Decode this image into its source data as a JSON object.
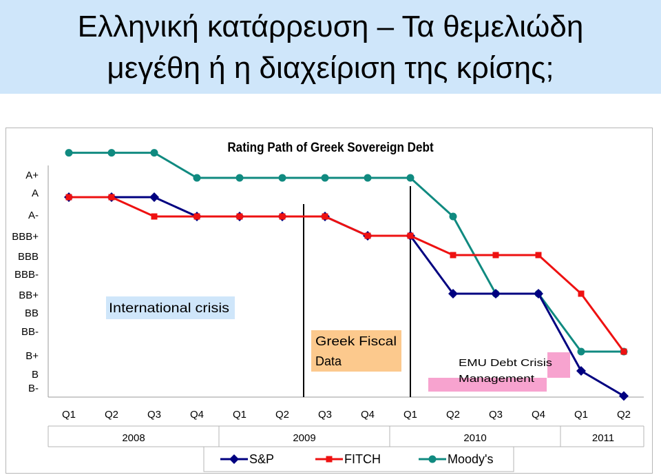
{
  "slide": {
    "title_line1": "Ελληνική κατάρρευση – Τα θεμελιώδη",
    "title_line2": "μεγέθη ή η διαχείριση της κρίσης;"
  },
  "annotations": {
    "intl_crisis": "International crisis",
    "greek_fiscal_line1": "Greek Fiscal",
    "greek_fiscal_line2": "Data",
    "emu_line1": "EMU Debt Crisis",
    "emu_line2": "Management"
  },
  "colors": {
    "sp": "#000080",
    "fitch": "#ee1111",
    "moodys": "#108a80",
    "intl_box": "#cfe6fa",
    "fiscal_box": "#fcc98d",
    "emu_box": "#f7a3cf"
  },
  "chart_data": {
    "type": "line",
    "title": "Rating Path of Greek Sovereign Debt",
    "y_categories": [
      "B-",
      "B",
      "B+",
      "BB-",
      "BB",
      "BB+",
      "BBB-",
      "BBB",
      "BBB+",
      "A-",
      "A",
      "A+"
    ],
    "x": [
      "Q1",
      "Q2",
      "Q3",
      "Q4",
      "Q1",
      "Q2",
      "Q3",
      "Q4",
      "Q1",
      "Q2",
      "Q3",
      "Q4",
      "Q1",
      "Q2"
    ],
    "years": [
      {
        "label": "2008",
        "start": 0,
        "span": 4
      },
      {
        "label": "2009",
        "start": 4,
        "span": 4
      },
      {
        "label": "2010",
        "start": 8,
        "span": 4
      },
      {
        "label": "2011",
        "start": 12,
        "span": 2
      }
    ],
    "series": [
      {
        "name": "S&P",
        "marker": "diamond",
        "values": [
          "A",
          "A",
          "A",
          "A-",
          "A-",
          "A-",
          "A-",
          "BBB+",
          "BBB+",
          "BB+",
          "BB+",
          "BB+",
          "B",
          "CCC"
        ]
      },
      {
        "name": "FITCH",
        "marker": "square",
        "values": [
          "A",
          "A",
          "A-",
          "A-",
          "A-",
          "A-",
          "A-",
          "BBB+",
          "BBB+",
          "BBB",
          "BBB",
          "BBB",
          "BB+",
          "B+"
        ]
      },
      {
        "name": "Moody's",
        "marker": "circle",
        "values": [
          "Aa1",
          "Aa1",
          "Aa1",
          "A1",
          "A1",
          "A1",
          "A1",
          "A1",
          "A1",
          "A3",
          "Ba1",
          "Ba1",
          "B1",
          "B1"
        ]
      }
    ],
    "vertical_markers": [
      6.5,
      8
    ]
  }
}
